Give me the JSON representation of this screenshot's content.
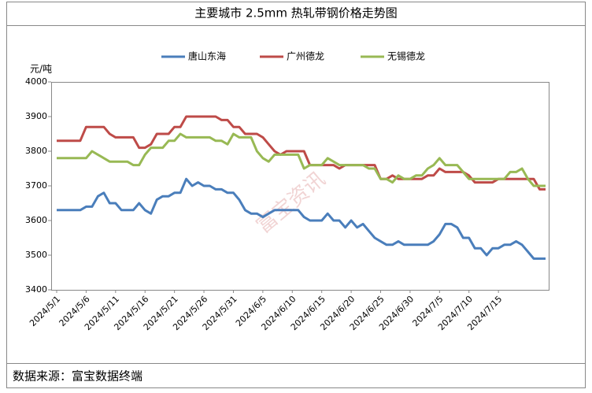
{
  "chart_data": {
    "type": "line",
    "title": "主要城市 2.5mm 热轧带钢价格走势图",
    "y_label": "元/吨",
    "source": "数据来源：富宝数据终端",
    "watermark": "富宝资讯",
    "legend": "top",
    "categories": [
      "2024/5/1",
      null,
      null,
      null,
      null,
      "2024/5/6",
      null,
      null,
      null,
      null,
      "2024/5/11",
      null,
      null,
      null,
      null,
      "2024/5/16",
      null,
      null,
      null,
      null,
      "2024/5/21",
      null,
      null,
      null,
      null,
      "2024/5/26",
      null,
      null,
      null,
      null,
      "2024/5/31",
      null,
      null,
      null,
      null,
      "2024/6/5",
      null,
      null,
      null,
      null,
      "2024/6/10",
      null,
      null,
      null,
      null,
      "2024/6/15",
      null,
      null,
      null,
      null,
      "2024/6/20",
      null,
      null,
      null,
      null,
      "2024/6/25",
      null,
      null,
      null,
      null,
      "2024/6/30",
      null,
      null,
      null,
      null,
      "2024/7/5",
      null,
      null,
      null,
      null,
      "2024/7/10",
      null,
      null,
      null,
      null,
      "2024/7/15",
      null,
      null,
      null,
      null,
      null,
      null,
      null,
      null
    ],
    "series": [
      {
        "name": "唐山东海",
        "color": "#4a7ebb",
        "values": [
          3630,
          3630,
          3630,
          3630,
          3630,
          3640,
          3640,
          3670,
          3680,
          3650,
          3650,
          3630,
          3630,
          3630,
          3650,
          3630,
          3620,
          3660,
          3670,
          3670,
          3680,
          3680,
          3720,
          3700,
          3710,
          3700,
          3700,
          3690,
          3690,
          3680,
          3680,
          3660,
          3630,
          3620,
          3620,
          3610,
          3620,
          3630,
          3630,
          3630,
          3630,
          3630,
          3610,
          3600,
          3600,
          3600,
          3620,
          3600,
          3600,
          3580,
          3600,
          3580,
          3590,
          3570,
          3550,
          3540,
          3530,
          3530,
          3540,
          3530,
          3530,
          3530,
          3530,
          3530,
          3540,
          3560,
          3590,
          3590,
          3580,
          3550,
          3550,
          3520,
          3520,
          3500,
          3520,
          3520,
          3530,
          3530,
          3540,
          3530,
          3510,
          3490,
          3490,
          3490
        ]
      },
      {
        "name": "广州德龙",
        "color": "#be4b48",
        "values": [
          3830,
          3830,
          3830,
          3830,
          3830,
          3870,
          3870,
          3870,
          3870,
          3850,
          3840,
          3840,
          3840,
          3840,
          3810,
          3810,
          3820,
          3850,
          3850,
          3850,
          3870,
          3870,
          3900,
          3900,
          3900,
          3900,
          3900,
          3900,
          3890,
          3890,
          3870,
          3870,
          3850,
          3850,
          3850,
          3840,
          3820,
          3800,
          3790,
          3800,
          3800,
          3800,
          3800,
          3760,
          3760,
          3760,
          3760,
          3760,
          3750,
          3760,
          3760,
          3760,
          3760,
          3760,
          3760,
          3720,
          3720,
          3730,
          3720,
          3720,
          3720,
          3720,
          3720,
          3730,
          3730,
          3750,
          3740,
          3740,
          3740,
          3740,
          3730,
          3710,
          3710,
          3710,
          3710,
          3720,
          3720,
          3720,
          3720,
          3720,
          3720,
          3720,
          3690,
          3690
        ]
      },
      {
        "name": "无锡德龙",
        "color": "#98b954",
        "values": [
          3780,
          3780,
          3780,
          3780,
          3780,
          3780,
          3800,
          3790,
          3780,
          3770,
          3770,
          3770,
          3770,
          3760,
          3760,
          3790,
          3810,
          3810,
          3810,
          3830,
          3830,
          3850,
          3840,
          3840,
          3840,
          3840,
          3840,
          3830,
          3830,
          3820,
          3850,
          3840,
          3840,
          3840,
          3800,
          3780,
          3770,
          3790,
          3790,
          3790,
          3790,
          3790,
          3750,
          3760,
          3760,
          3760,
          3780,
          3770,
          3760,
          3760,
          3760,
          3760,
          3760,
          3750,
          3750,
          3720,
          3720,
          3710,
          3730,
          3720,
          3720,
          3730,
          3730,
          3750,
          3760,
          3780,
          3760,
          3760,
          3760,
          3740,
          3720,
          3720,
          3720,
          3720,
          3720,
          3720,
          3720,
          3740,
          3740,
          3750,
          3720,
          3700,
          3700,
          3700
        ]
      }
    ],
    "ylim": [
      3400,
      4000
    ],
    "yticks": [
      3400,
      3500,
      3600,
      3700,
      3800,
      3900,
      4000
    ],
    "grid": false
  }
}
